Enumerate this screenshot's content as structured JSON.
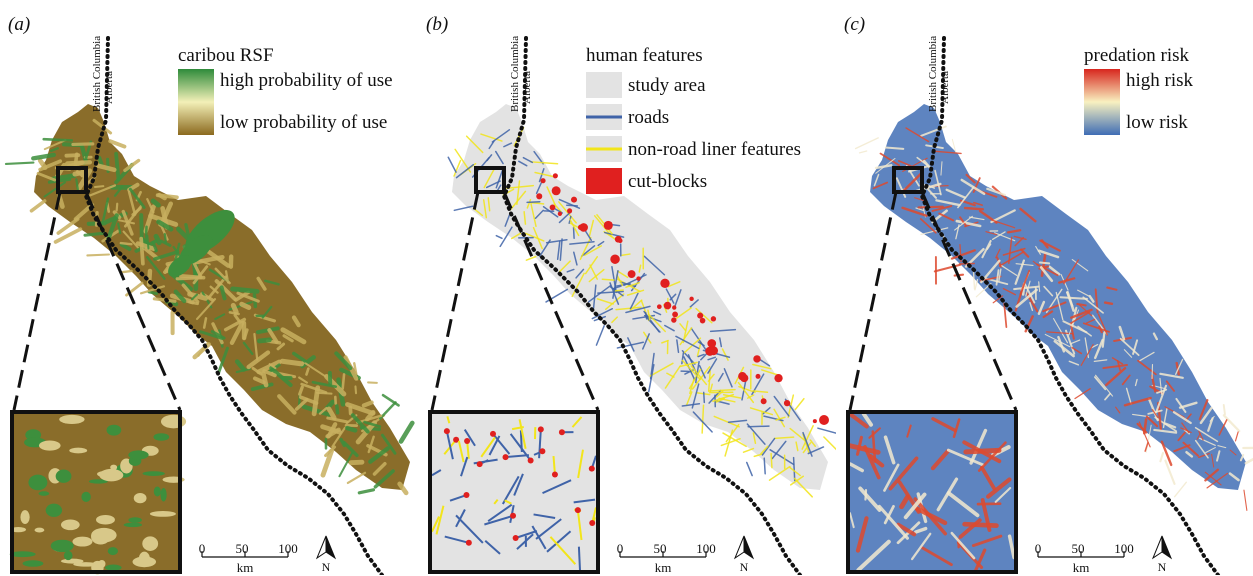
{
  "panels": [
    {
      "label": "(a)",
      "legend_title": "caribou RSF",
      "legend_high": "high probability of use",
      "legend_low": "low probability of use",
      "gradient_colors": [
        "#2e8b3a",
        "#f3f0b8",
        "#8b6a1f"
      ]
    },
    {
      "label": "(b)",
      "legend_title": "human features",
      "legend_items": [
        {
          "label": "study area",
          "color": "#e3e3e3",
          "kind": "fill"
        },
        {
          "label": "roads",
          "color": "#3f63a8",
          "kind": "line"
        },
        {
          "label": "non-road liner features",
          "color": "#f2e51a",
          "kind": "line"
        },
        {
          "label": "cut-blocks",
          "color": "#e0201f",
          "kind": "fill"
        }
      ]
    },
    {
      "label": "(c)",
      "legend_title": "predation risk",
      "legend_high": "high risk",
      "legend_low": "low risk",
      "gradient_colors": [
        "#d7261e",
        "#f8f1c0",
        "#3f6db5"
      ]
    }
  ],
  "boundary_labels": {
    "west": "British Columbia",
    "east": "Alberta"
  },
  "scale_bar": {
    "ticks": [
      "0",
      "50",
      "100"
    ],
    "unit": "km"
  },
  "north_label": "N",
  "colors": {
    "rsf_base": "#8a6d2a",
    "rsf_green": "#3d8f3d",
    "study_area": "#e3e3e3",
    "road": "#3f63a8",
    "linear": "#f2e51a",
    "cutblock": "#e0201f",
    "risk_base": "#5e84c0",
    "risk_mid": "#f3ead0",
    "risk_red": "#de4a2e"
  }
}
